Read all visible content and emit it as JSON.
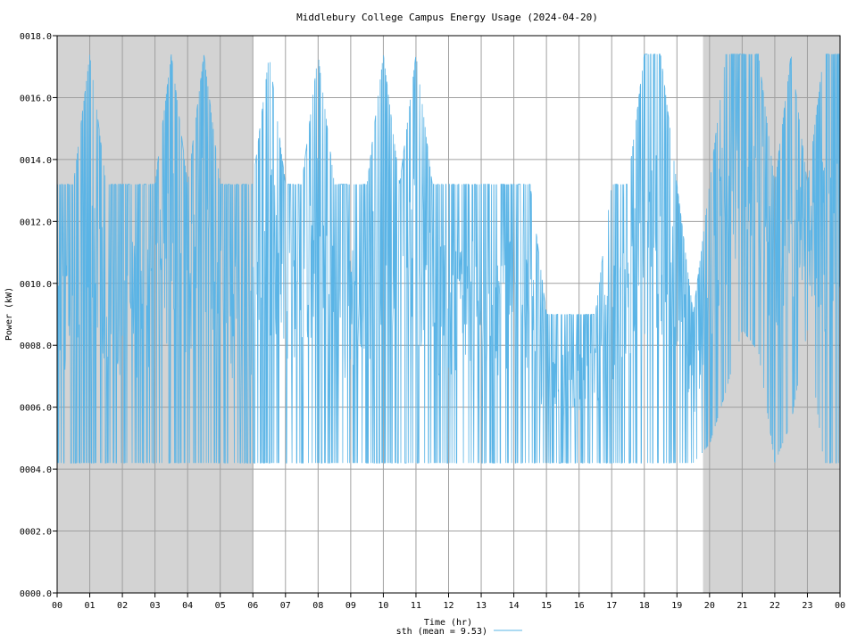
{
  "chart_data": {
    "type": "line",
    "title": "Middlebury College Campus Energy Usage (2024-04-20)",
    "xlabel": "Time (hr)",
    "ylabel": "Power (kW)",
    "xlim": [
      0,
      24
    ],
    "ylim": [
      0,
      18
    ],
    "grid": true,
    "legend_position": "bottom-center",
    "x_tick_labels": [
      "00",
      "01",
      "02",
      "03",
      "04",
      "05",
      "06",
      "07",
      "08",
      "09",
      "10",
      "11",
      "12",
      "13",
      "14",
      "15",
      "16",
      "17",
      "18",
      "19",
      "20",
      "21",
      "22",
      "23",
      "00"
    ],
    "y_tick_labels": [
      "0000.0",
      "0002.0",
      "0004.0",
      "0006.0",
      "0008.0",
      "0010.0",
      "0012.0",
      "0014.0",
      "0016.0",
      "0018.0"
    ],
    "shaded_x_ranges": [
      [
        0,
        6
      ],
      [
        19.8,
        24
      ]
    ],
    "series": [
      {
        "name": "sth (mean = 9.53)",
        "color": "#5ab4e6",
        "x": [
          0,
          0.5,
          1,
          1.5,
          2,
          2.5,
          3,
          3.5,
          4,
          4.5,
          5,
          5.5,
          6,
          6.5,
          7,
          7.5,
          8,
          8.5,
          9,
          9.5,
          10,
          10.5,
          11,
          11.5,
          12,
          12.5,
          13,
          13.5,
          14,
          14.5,
          15,
          15.5,
          16,
          16.5,
          17,
          17.5,
          18,
          18.5,
          19,
          19.5,
          20,
          20.5,
          21,
          21.5,
          22,
          22.5,
          23,
          23.5,
          24
        ],
        "low": [
          4.2,
          4.2,
          4.2,
          4.2,
          4.2,
          4.2,
          4.2,
          4.2,
          4.2,
          4.2,
          4.2,
          4.2,
          4.2,
          4.2,
          4.2,
          4.2,
          4.2,
          4.2,
          4.2,
          4.2,
          4.2,
          4.2,
          4.2,
          4.2,
          4.2,
          4.2,
          4.2,
          4.2,
          4.2,
          4.2,
          4.2,
          4.2,
          4.2,
          4.2,
          4.2,
          4.2,
          4.2,
          4.2,
          4.2,
          4.2,
          4.8,
          6.5,
          8.5,
          7.8,
          4.2,
          5.5,
          8.5,
          4.2,
          4.2
        ],
        "high": [
          13.2,
          13.2,
          17.4,
          13.2,
          13.2,
          13.2,
          13.2,
          17.4,
          13.2,
          17.4,
          13.2,
          13.2,
          13.2,
          17.4,
          13.2,
          13.2,
          17.4,
          13.2,
          13.2,
          13.2,
          17.4,
          13.2,
          17.4,
          13.2,
          13.2,
          13.2,
          13.2,
          13.2,
          13.2,
          13.2,
          9.0,
          9.0,
          9.0,
          9.0,
          13.2,
          13.2,
          17.4,
          17.4,
          13.2,
          9.0,
          13.2,
          17.4,
          17.4,
          17.4,
          13.2,
          17.4,
          13.2,
          17.4,
          17.4
        ],
        "mean": 9.53
      }
    ]
  }
}
